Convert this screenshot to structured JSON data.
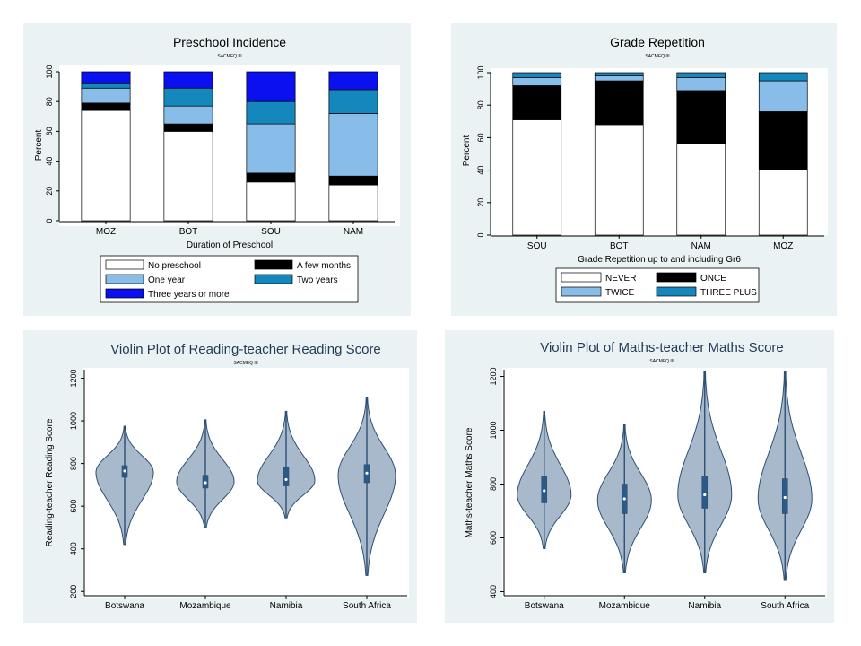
{
  "colors": {
    "no_preschool": "#ffffff",
    "few_months": "#000000",
    "one_year": "#87bde8",
    "two_years": "#1487bd",
    "three_plus_years": "#0a10f0",
    "violin_fill": "#a9b9cc",
    "violin_stroke": "#2c4f74",
    "box_fill": "#2c5a86",
    "panel_bg": "#eaf2f3"
  },
  "chart_data": [
    {
      "type": "bar",
      "stacked": true,
      "title": "Preschool Incidence",
      "subtitle": "SACMEQ III",
      "xlabel": "Duration of Preschool",
      "ylabel": "Percent",
      "ylim": [
        0,
        100
      ],
      "yticks": [
        "0",
        "20",
        "40",
        "60",
        "80",
        "100"
      ],
      "categories": [
        "MOZ",
        "BOT",
        "SOU",
        "NAM"
      ],
      "series": [
        {
          "name": "No preschool",
          "color": "#ffffff",
          "values": [
            74,
            60,
            26,
            24
          ]
        },
        {
          "name": "A few months",
          "color": "#000000",
          "values": [
            5,
            5,
            6,
            6
          ]
        },
        {
          "name": "One year",
          "color": "#87bde8",
          "values": [
            10,
            12,
            33,
            42
          ]
        },
        {
          "name": "Two years",
          "color": "#1487bd",
          "values": [
            3,
            12,
            15,
            16
          ]
        },
        {
          "name": "Three years or more",
          "color": "#0a10f0",
          "values": [
            8,
            11,
            20,
            12
          ]
        }
      ],
      "legend": {
        "placement": "bottom",
        "order": [
          "No preschool",
          "A few months",
          "One year",
          "Two years",
          "Three years or more"
        ]
      }
    },
    {
      "type": "bar",
      "stacked": true,
      "title": "Grade Repetition",
      "subtitle": "SACMEQ III",
      "xlabel": "Grade Repetition up to and including Gr6",
      "ylabel": "Percent",
      "ylim": [
        0,
        100
      ],
      "yticks": [
        "0",
        "20",
        "40",
        "60",
        "80",
        "100"
      ],
      "categories": [
        "SOU",
        "BOT",
        "NAM",
        "MOZ"
      ],
      "series": [
        {
          "name": "NEVER",
          "color": "#ffffff",
          "values": [
            71,
            68,
            56,
            40
          ]
        },
        {
          "name": "ONCE",
          "color": "#000000",
          "values": [
            21,
            27,
            33,
            36
          ]
        },
        {
          "name": "TWICE",
          "color": "#87bde8",
          "values": [
            5,
            3,
            8,
            19
          ]
        },
        {
          "name": "THREE PLUS",
          "color": "#1487bd",
          "values": [
            3,
            2,
            3,
            5
          ]
        }
      ],
      "legend": {
        "placement": "bottom",
        "order": [
          "NEVER",
          "ONCE",
          "TWICE",
          "THREE PLUS"
        ]
      }
    },
    {
      "type": "violin",
      "title": "Violin Plot of Reading-teacher Reading Score",
      "subtitle": "SACMEQ III",
      "xlabel": "",
      "ylabel": "Reading-teacher Reading Score",
      "ylim": [
        180,
        1240
      ],
      "yticks": [
        "200",
        "400",
        "600",
        "800",
        "1000",
        "1200"
      ],
      "categories": [
        "Botswana",
        "Mozambique",
        "Namibia",
        "South Africa"
      ],
      "groups": [
        {
          "name": "Botswana",
          "min": 420,
          "q1": 735,
          "median": 765,
          "q3": 790,
          "max": 975,
          "peak": 760
        },
        {
          "name": "Mozambique",
          "min": 500,
          "q1": 685,
          "median": 710,
          "q3": 745,
          "max": 1005,
          "peak": 715
        },
        {
          "name": "Namibia",
          "min": 545,
          "q1": 695,
          "median": 725,
          "q3": 780,
          "max": 1045,
          "peak": 720
        },
        {
          "name": "South Africa",
          "min": 275,
          "q1": 710,
          "median": 755,
          "q3": 795,
          "max": 1110,
          "peak": 745
        }
      ]
    },
    {
      "type": "violin",
      "title": "Violin Plot of Maths-teacher Maths Score",
      "subtitle": "SACMEQ III",
      "xlabel": "",
      "ylabel": "Maths-teacher Maths Score",
      "ylim": [
        385,
        1225
      ],
      "yticks": [
        "400",
        "600",
        "800",
        "1000",
        "1200"
      ],
      "categories": [
        "Botswana",
        "Mozambique",
        "Namibia",
        "South Africa"
      ],
      "groups": [
        {
          "name": "Botswana",
          "min": 560,
          "q1": 730,
          "median": 775,
          "q3": 830,
          "max": 1070,
          "peak": 760
        },
        {
          "name": "Mozambique",
          "min": 470,
          "q1": 690,
          "median": 745,
          "q3": 800,
          "max": 1020,
          "peak": 740
        },
        {
          "name": "Namibia",
          "min": 470,
          "q1": 710,
          "median": 760,
          "q3": 830,
          "max": 1220,
          "peak": 760
        },
        {
          "name": "South Africa",
          "min": 445,
          "q1": 690,
          "median": 750,
          "q3": 820,
          "max": 1220,
          "peak": 745
        }
      ]
    }
  ]
}
